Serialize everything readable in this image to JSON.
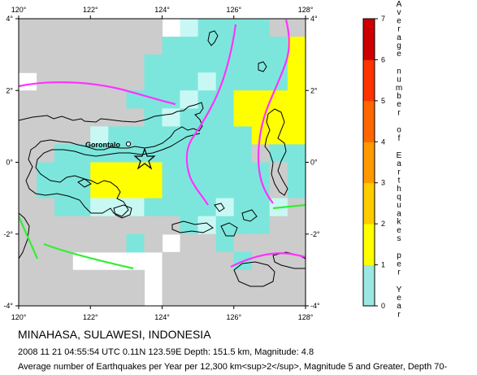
{
  "map": {
    "x_ticks": [
      "120°",
      "122°",
      "124°",
      "126°",
      "128°"
    ],
    "y_ticks": [
      "4°",
      "2°",
      "0°",
      "-2°",
      "-4°"
    ],
    "city_label": "Gorontalo",
    "colors": {
      "land_fill": "#ffffff",
      "grid_gray": "#cccccc",
      "grid_cyan": "#7de6dc",
      "grid_light_cyan": "#c9f8f4",
      "grid_yellow": "#ffff00",
      "trench_magenta": "#ff33ff",
      "fault_green": "#33ee33",
      "coastline": "#000000"
    }
  },
  "legend": {
    "ticks": [
      "0",
      "1",
      "2",
      "3",
      "4",
      "5",
      "6",
      "7"
    ],
    "title_letters": "Average number of Earthquakes per Year",
    "colors": [
      "#9be8e2",
      "#ffff00",
      "#ffcc00",
      "#ff9900",
      "#ff6600",
      "#ff3300",
      "#cc0000"
    ]
  },
  "caption": {
    "title": "MINAHASA, SULAWESI, INDONESIA",
    "event": "2008 11 21 04:55:54 UTC 0.11N 123.59E Depth: 151.5 km, Magnitude: 4.8",
    "description": "Average number of Earthquakes per Year per 12,300 km<sup>2</sup>, Magnitude 5 and Greater, Depth 70-"
  }
}
